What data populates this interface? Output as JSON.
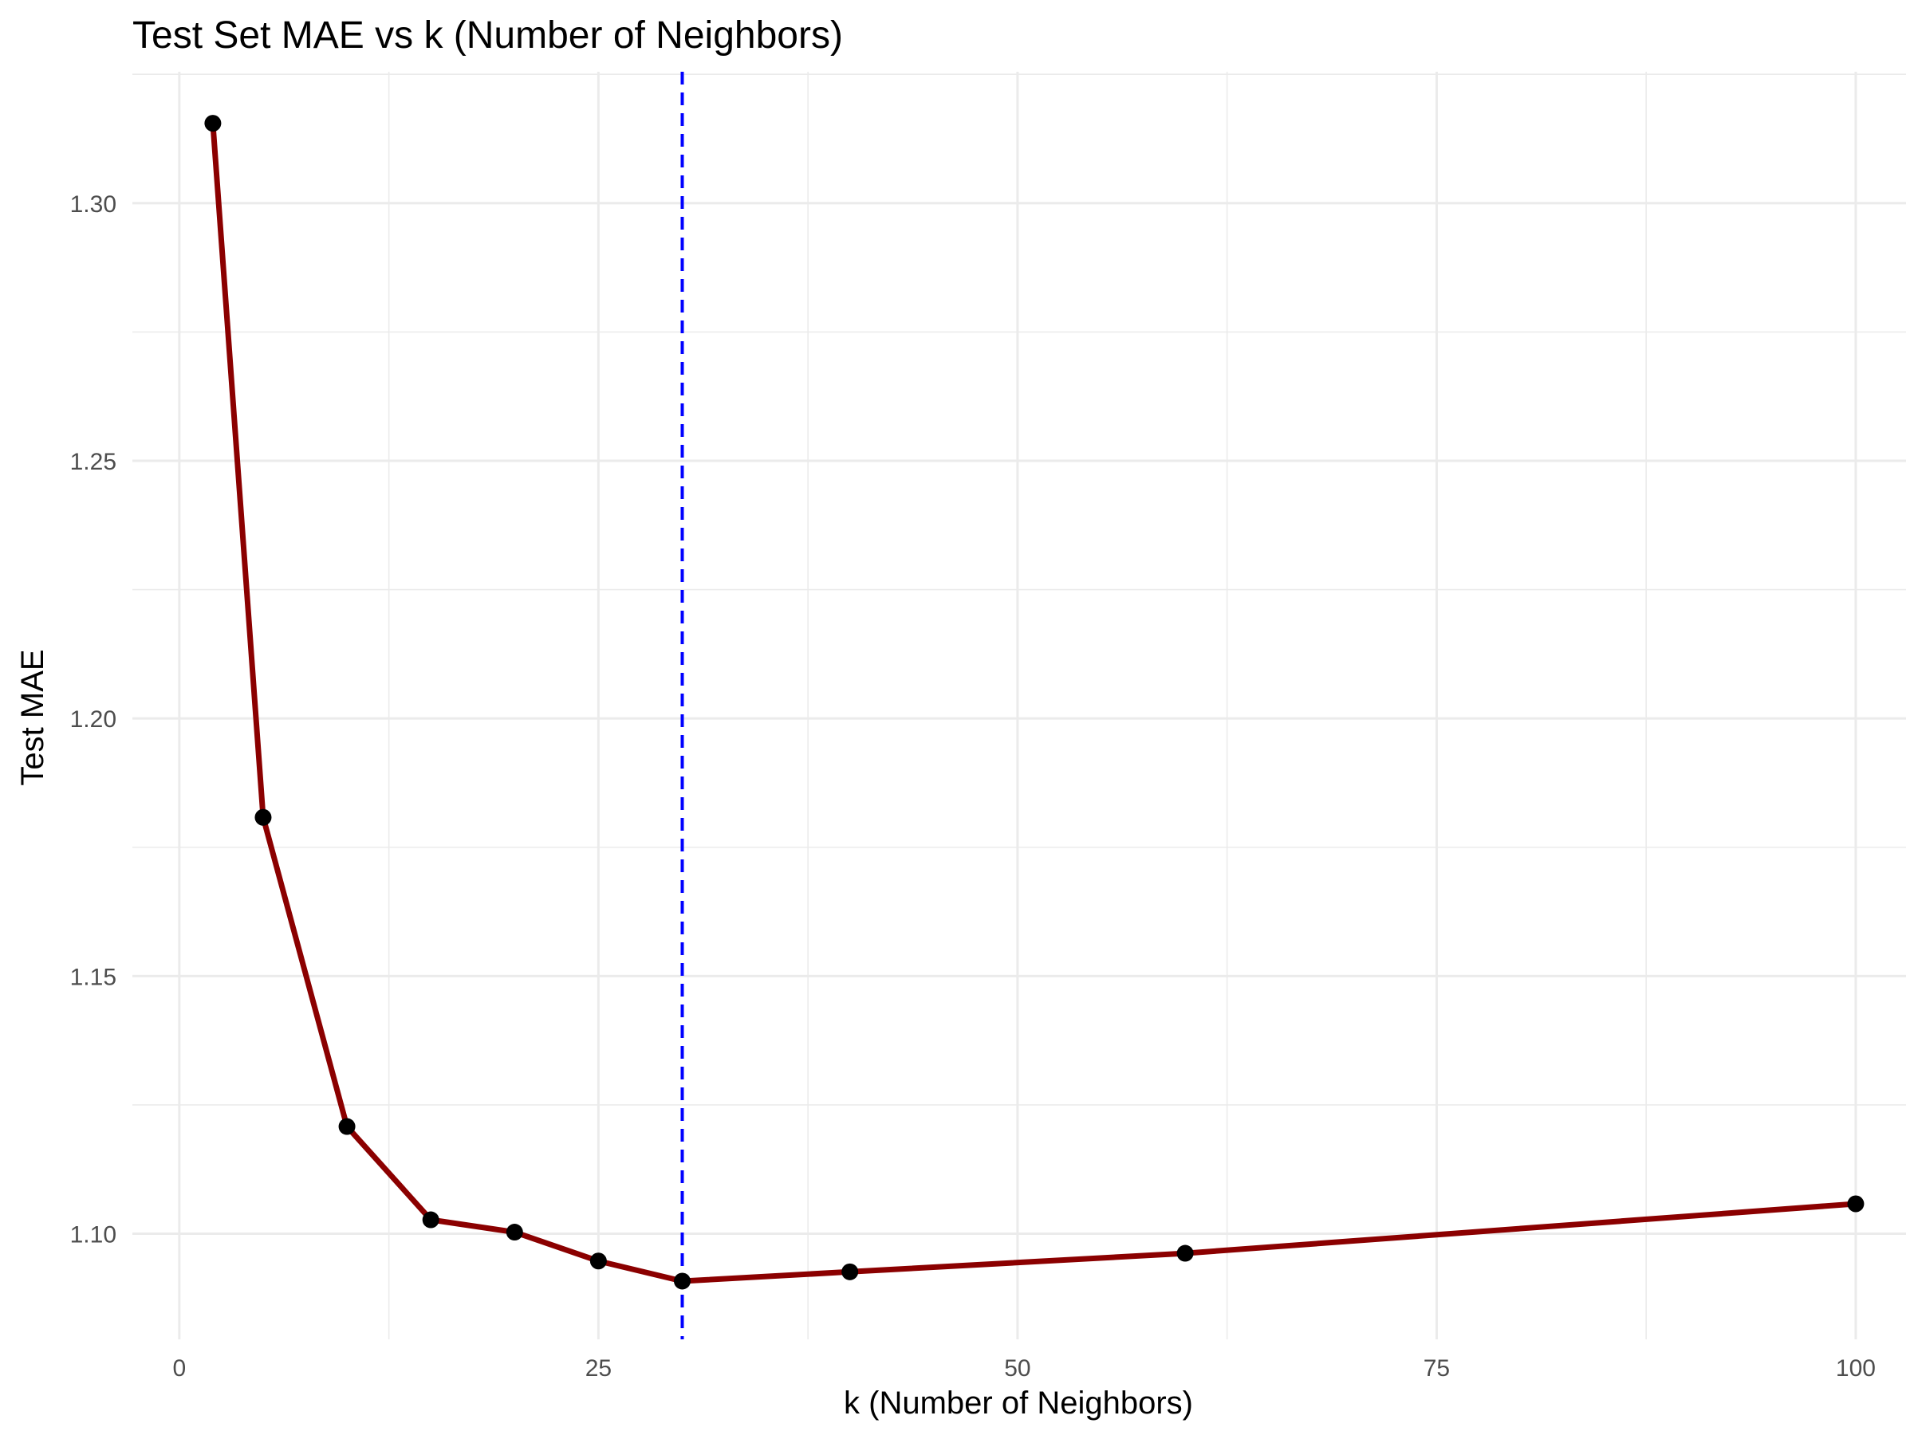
{
  "chart_data": {
    "type": "line",
    "title": "Test Set MAE vs k (Number of Neighbors)",
    "xlabel": "k (Number of Neighbors)",
    "ylabel": "Test MAE",
    "xlim": [
      -2.8,
      103
    ],
    "ylim": [
      1.0795,
      1.3255
    ],
    "x_ticks": [
      0,
      25,
      50,
      75,
      100
    ],
    "x_tick_labels": [
      "0",
      "25",
      "50",
      "75",
      "100"
    ],
    "y_ticks": [
      1.1,
      1.15,
      1.2,
      1.25,
      1.3
    ],
    "y_tick_labels": [
      "1.10",
      "1.15",
      "1.20",
      "1.25",
      "1.30"
    ],
    "x": [
      2,
      5,
      10,
      15,
      20,
      25,
      30,
      40,
      60,
      100
    ],
    "y": [
      1.3155,
      1.1808,
      1.1208,
      1.1027,
      1.1003,
      1.0947,
      1.0908,
      1.0926,
      1.0962,
      1.1058
    ],
    "vline_x": 30,
    "grid": true,
    "legend": "none",
    "colors": {
      "line": "#8b0000",
      "points": "#000000",
      "vline": "#0000ff",
      "grid": "#ebebeb"
    }
  }
}
